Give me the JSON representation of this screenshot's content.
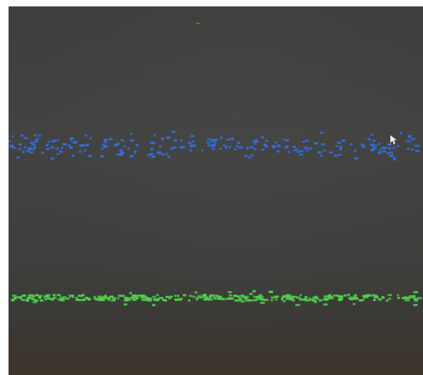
{
  "scene": {
    "description_tags": [
      "photo-of-monitor",
      "scatter-band"
    ],
    "colors": {
      "background": "#3f403e",
      "blue_dots": "#2f6fe8",
      "green_dots": "#4fd14a",
      "red_marker": "#d8402a",
      "cursor": "#f2f2f2"
    },
    "icons": {
      "cursor": "mouse-pointer-icon"
    }
  }
}
